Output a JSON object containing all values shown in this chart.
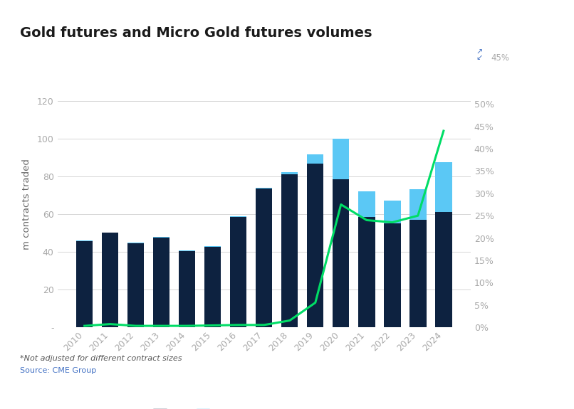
{
  "title": "Gold futures and Micro Gold futures volumes",
  "ylabel_left": "m contracts traded",
  "footnote1": "*Not adjusted for different contract sizes",
  "footnote2": "Source: CME Group",
  "years": [
    2010,
    2011,
    2012,
    2013,
    2014,
    2015,
    2016,
    2017,
    2018,
    2019,
    2020,
    2021,
    2022,
    2023,
    2024
  ],
  "gc_values": [
    45.5,
    50.0,
    44.5,
    47.5,
    40.5,
    42.5,
    58.5,
    73.5,
    81.0,
    86.5,
    78.5,
    58.5,
    55.0,
    57.0,
    61.0
  ],
  "mgc_values": [
    0.3,
    0.3,
    0.3,
    0.3,
    0.3,
    0.3,
    0.3,
    0.5,
    1.0,
    5.0,
    21.5,
    13.5,
    12.0,
    16.0,
    26.5
  ],
  "mgc_pct": [
    0.3,
    0.7,
    0.3,
    0.3,
    0.3,
    0.4,
    0.5,
    0.5,
    1.5,
    5.5,
    27.5,
    24.0,
    23.5,
    25.0,
    44.0
  ],
  "gc_color": "#0d2240",
  "mgc_color": "#5bc8f5",
  "line_color": "#00dd66",
  "background_color": "#ffffff",
  "grid_color": "#d0d0d0",
  "title_fontsize": 14,
  "label_fontsize": 9.5,
  "tick_fontsize": 9,
  "ylim_left": [
    0,
    130
  ],
  "ylim_right": [
    0,
    55
  ],
  "yticks_left": [
    0,
    20,
    40,
    60,
    80,
    100,
    120
  ],
  "yticks_right": [
    0,
    5,
    10,
    15,
    20,
    25,
    30,
    35,
    40,
    45,
    50
  ],
  "ytick_labels_right": [
    "0%",
    "5%",
    "10%",
    "15%",
    "20%",
    "25%",
    "30%",
    "35%",
    "40%",
    "45%",
    "50%"
  ]
}
